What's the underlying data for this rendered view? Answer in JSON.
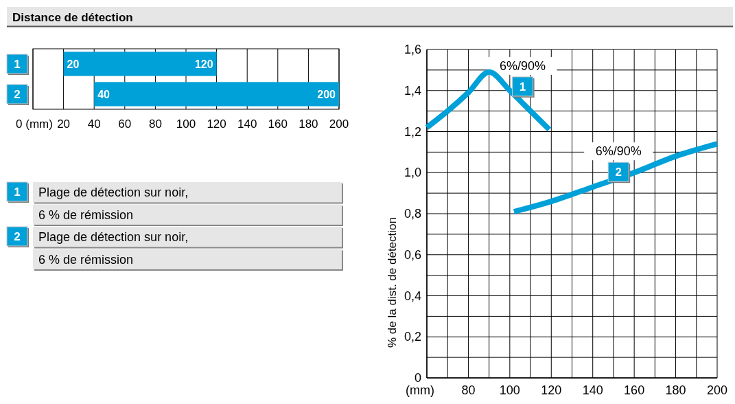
{
  "chart_data": [
    {
      "type": "bar",
      "orientation": "horizontal",
      "title": "Distance de détection",
      "categories": [
        "1",
        "2"
      ],
      "base": [
        20,
        40
      ],
      "values": [
        100,
        160
      ],
      "color": "#00a0d8",
      "xlim": [
        0,
        200
      ],
      "xticks": [
        {
          "value": 0,
          "label": "0 (mm)"
        },
        20,
        40,
        60,
        80,
        100,
        120,
        140,
        160,
        180,
        200
      ],
      "grid": "x",
      "annotations": [
        {
          "text": "20",
          "x": 20,
          "y": "1"
        },
        {
          "text": "120",
          "x": 120,
          "y": "1"
        },
        {
          "text": "40",
          "x": 40,
          "y": "2"
        },
        {
          "text": "200",
          "x": 200,
          "y": "2"
        }
      ]
    },
    {
      "type": "line",
      "ylabel": "% de la dist. de détection",
      "xlim": [
        60,
        200
      ],
      "xticks": [
        {
          "value": 60,
          "label": "(mm)"
        },
        {
          "value": 70,
          "label": null
        },
        80,
        {
          "value": 90,
          "label": null
        },
        100,
        {
          "value": 110,
          "label": null
        },
        120,
        {
          "value": 130,
          "label": null
        },
        140,
        {
          "value": 150,
          "label": null
        },
        160,
        {
          "value": 170,
          "label": null
        },
        180,
        {
          "value": 190,
          "label": null
        },
        200
      ],
      "ylim": [
        0,
        1.6
      ],
      "yticks": [
        0,
        {
          "value": 0.1,
          "label": null
        },
        {
          "value": 0.2,
          "label": "0,2"
        },
        {
          "value": 0.3,
          "label": null
        },
        {
          "value": 0.4,
          "label": "0,4"
        },
        {
          "value": 0.5,
          "label": null
        },
        {
          "value": 0.6,
          "label": "0,6"
        },
        {
          "value": 0.7,
          "label": null
        },
        {
          "value": 0.8,
          "label": "0,8"
        },
        {
          "value": 0.9,
          "label": null
        },
        {
          "value": 1.0,
          "label": "1,0"
        },
        {
          "value": 1.1,
          "label": null
        },
        {
          "value": 1.2,
          "label": "1,2"
        },
        {
          "value": 1.3,
          "label": null
        },
        {
          "value": 1.4,
          "label": "1,4"
        },
        {
          "value": 1.5,
          "label": null
        },
        {
          "value": 1.6,
          "label": "1,6"
        }
      ],
      "grid": true,
      "series": [
        {
          "name": "1",
          "color": "#00a0d8",
          "x": [
            60,
            70,
            80,
            90,
            100,
            110,
            119
          ],
          "values": [
            1.22,
            1.3,
            1.39,
            1.49,
            1.4,
            1.3,
            1.21
          ]
        },
        {
          "name": "2",
          "color": "#00a0d8",
          "x": [
            102,
            120,
            140,
            160,
            180,
            200
          ],
          "values": [
            0.81,
            0.86,
            0.93,
            1.0,
            1.08,
            1.14
          ]
        }
      ],
      "annotations": [
        "6%/90%",
        "6%/90%"
      ]
    },
    {
      "type": "other",
      "categories": [
        "1",
        "2"
      ],
      "annotations": [
        "Plage de détection sur noir,",
        "6 % de rémission",
        "Plage de détection sur noir,",
        "6 % de rémission"
      ]
    }
  ]
}
